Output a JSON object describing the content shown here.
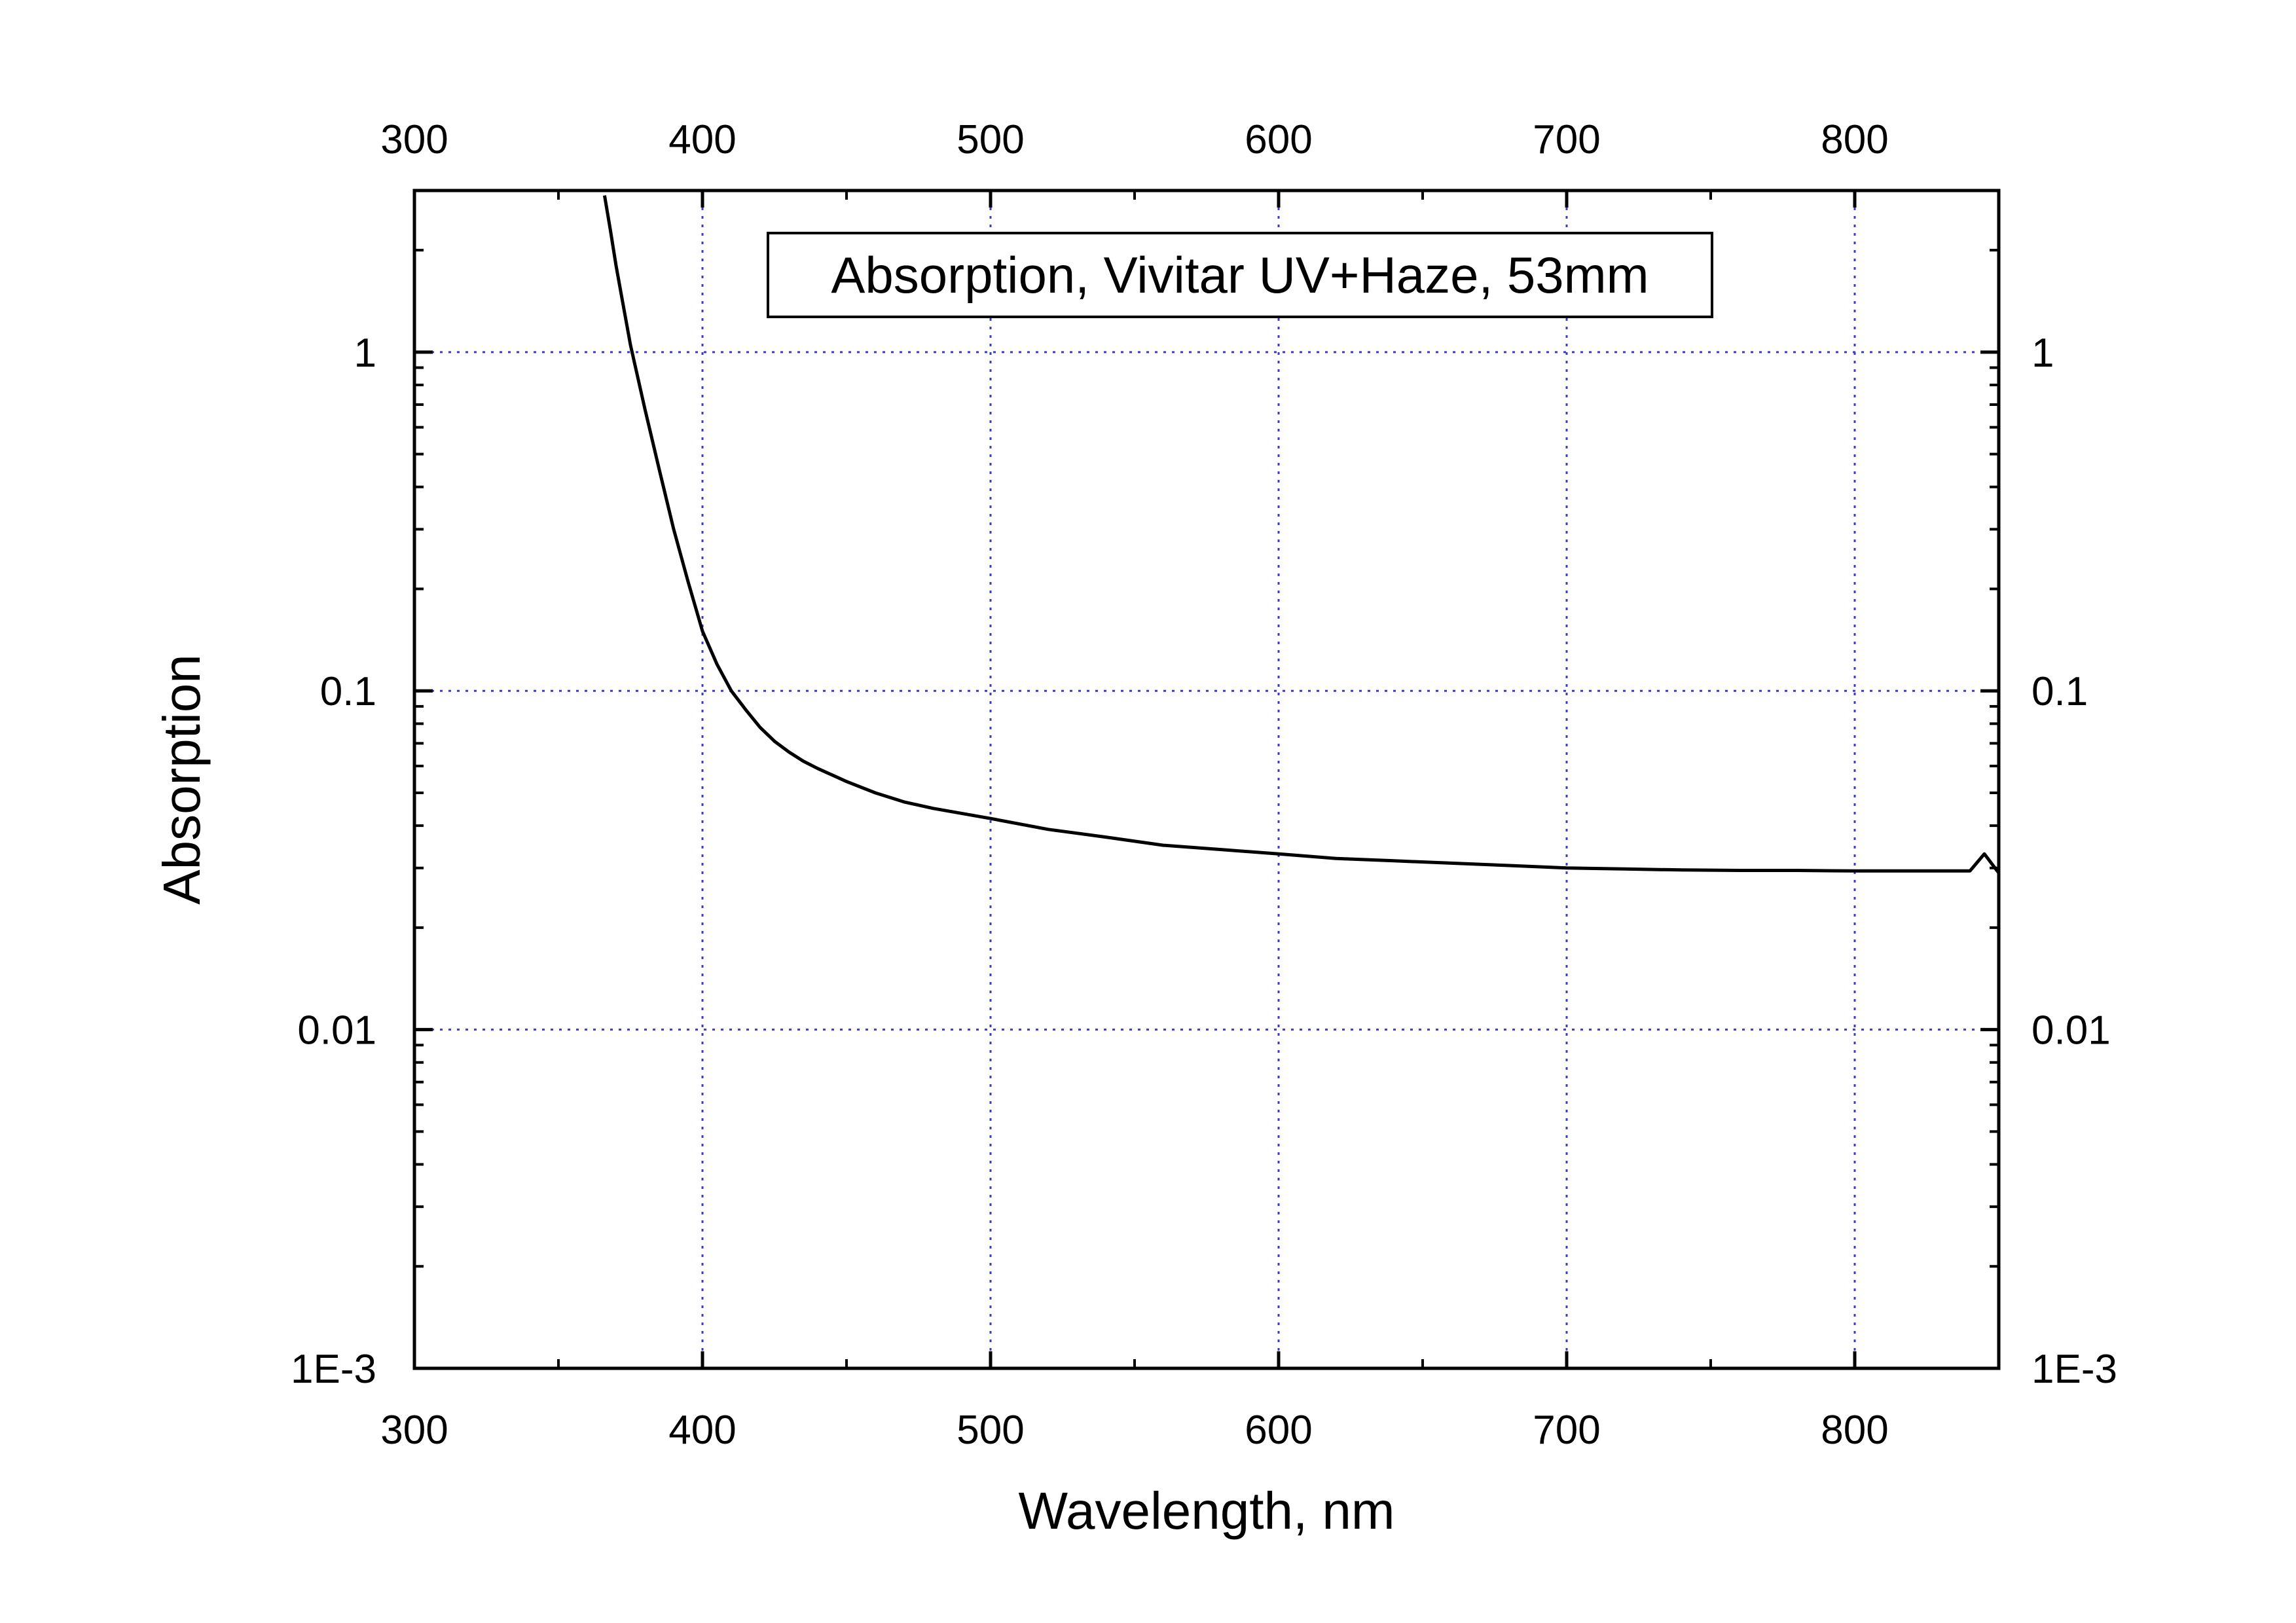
{
  "chart_data": {
    "type": "line",
    "xlabel": "Wavelength, nm",
    "ylabel": "Absorption",
    "xlim": [
      300,
      850
    ],
    "ylim": [
      0.001,
      3
    ],
    "yscale": "log",
    "grid": true,
    "x_ticks": [
      300,
      400,
      500,
      600,
      700,
      800
    ],
    "x_tick_labels": [
      "300",
      "400",
      "500",
      "600",
      "700",
      "800"
    ],
    "y_ticks": [
      0.001,
      0.01,
      0.1,
      1
    ],
    "y_tick_labels": [
      "1E-3",
      "0.01",
      "0.1",
      "1"
    ],
    "mirror_axes": {
      "top": true,
      "right": true
    },
    "legend": {
      "text": "Absorption, Vivitar UV+Haze, 53mm",
      "position": "top-center"
    },
    "series": [
      {
        "color": "#000000",
        "x": [
          366,
          368,
          370,
          372,
          375,
          380,
          385,
          390,
          395,
          400,
          405,
          410,
          415,
          420,
          425,
          430,
          435,
          440,
          450,
          460,
          470,
          480,
          500,
          520,
          540,
          560,
          580,
          600,
          620,
          640,
          660,
          680,
          700,
          720,
          740,
          760,
          780,
          800,
          820,
          840,
          845,
          850
        ],
        "y": [
          2.9,
          2.3,
          1.8,
          1.45,
          1.05,
          0.68,
          0.45,
          0.3,
          0.21,
          0.15,
          0.12,
          0.1,
          0.088,
          0.078,
          0.071,
          0.066,
          0.062,
          0.059,
          0.054,
          0.05,
          0.047,
          0.045,
          0.042,
          0.039,
          0.037,
          0.035,
          0.034,
          0.033,
          0.032,
          0.0315,
          0.031,
          0.0305,
          0.03,
          0.0298,
          0.0296,
          0.0295,
          0.0295,
          0.0294,
          0.0294,
          0.0294,
          0.033,
          0.029
        ]
      }
    ]
  }
}
